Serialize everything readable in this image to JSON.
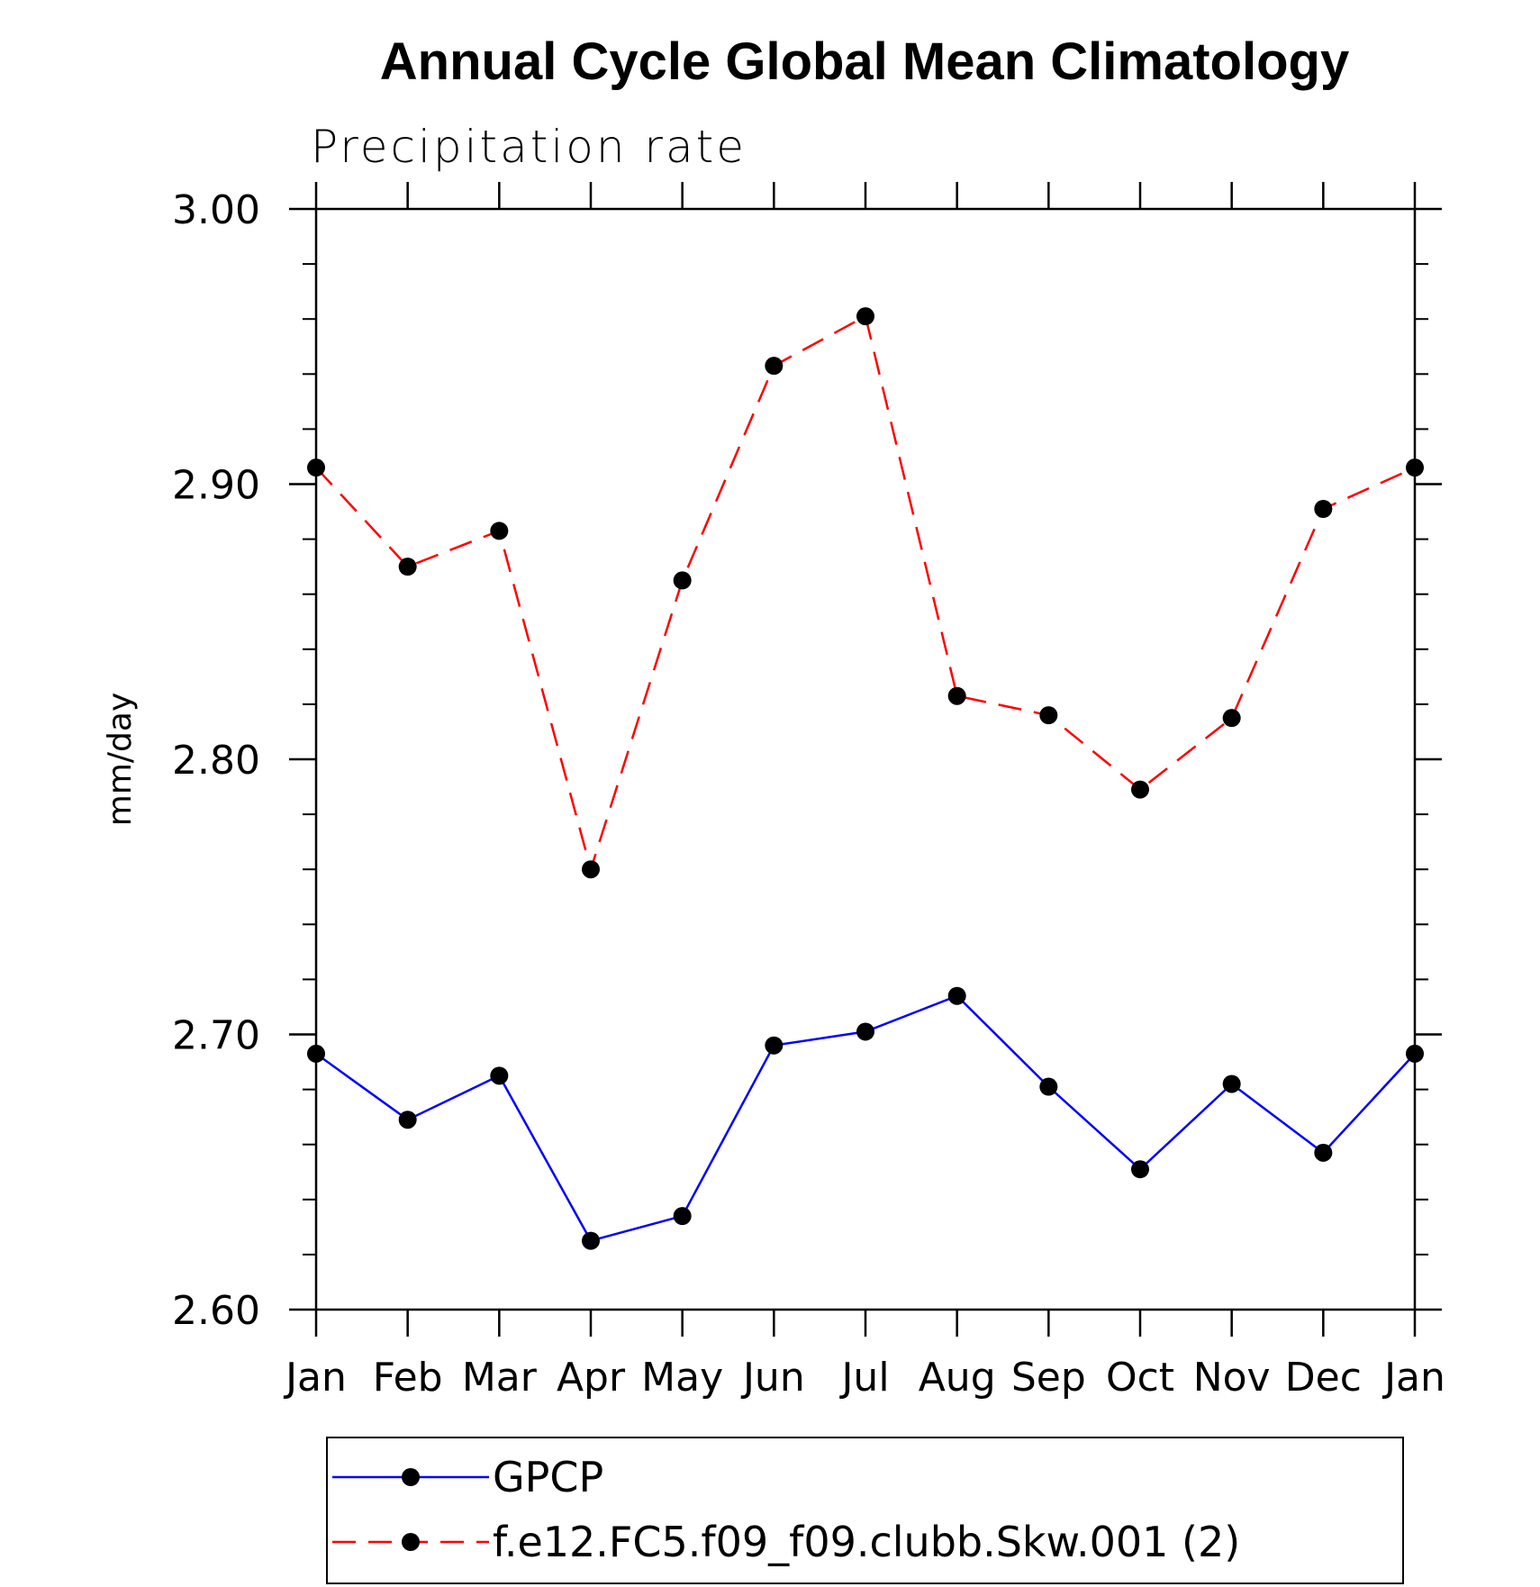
{
  "chart_data": {
    "type": "line",
    "title": "Annual Cycle Global Mean Climatology",
    "subtitle": "Precipitation rate",
    "ylabel": "mm/day",
    "xlabel": "",
    "categories": [
      "Jan",
      "Feb",
      "Mar",
      "Apr",
      "May",
      "Jun",
      "Jul",
      "Aug",
      "Sep",
      "Oct",
      "Nov",
      "Dec",
      "Jan"
    ],
    "ylim": [
      2.6,
      3.0
    ],
    "yticks": [
      "2.60",
      "2.70",
      "2.80",
      "2.90",
      "3.00"
    ],
    "y_minor_step": 0.02,
    "grid": false,
    "legend_position": "bottom",
    "series": [
      {
        "name": "GPCP",
        "color": "#0000ff",
        "line_style": "solid",
        "marker": "filled-circle",
        "values": [
          2.693,
          2.669,
          2.685,
          2.625,
          2.634,
          2.696,
          2.701,
          2.714,
          2.681,
          2.651,
          2.682,
          2.657,
          2.693
        ]
      },
      {
        "name": "f.e12.FC5.f09_f09.clubb.Skw.001 (2)",
        "color": "#ff0000",
        "line_style": "dashed",
        "marker": "filled-circle",
        "values": [
          2.906,
          2.87,
          2.883,
          2.76,
          2.865,
          2.943,
          2.961,
          2.823,
          2.816,
          2.789,
          2.815,
          2.891,
          2.906
        ]
      }
    ]
  }
}
